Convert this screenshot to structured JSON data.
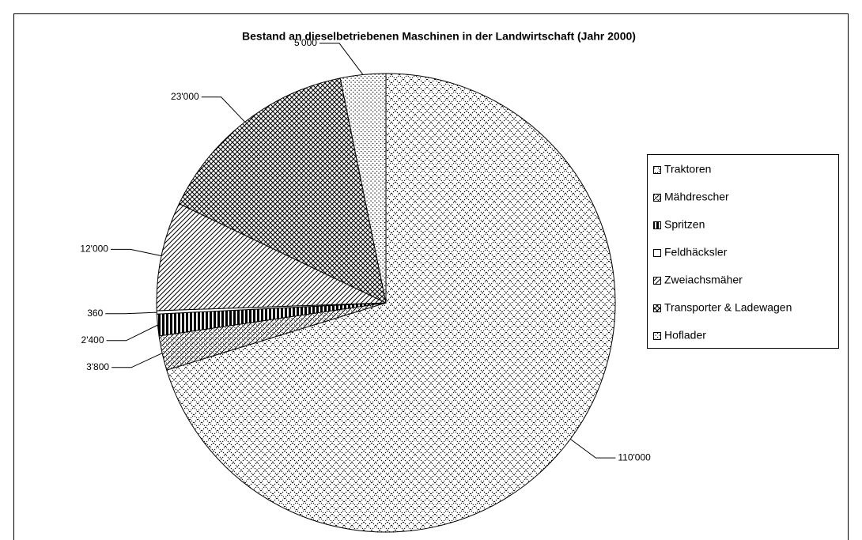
{
  "chart_data": {
    "type": "pie",
    "title": "Bestand an dieselbetriebenen Maschinen in der Landwirtschaft (Jahr 2000)",
    "categories": [
      "Traktoren",
      "Mähdrescher",
      "Spritzen",
      "Feldhäcksler",
      "Zweiachsmäher",
      "Transporter & Ladewagen",
      "Hoflader"
    ],
    "values": [
      110000,
      3800,
      2400,
      360,
      12000,
      23000,
      5000
    ],
    "value_labels": [
      "110'000",
      "3'800",
      "2'400",
      "360",
      "12'000",
      "23'000",
      "5'000"
    ],
    "legend": "right"
  }
}
